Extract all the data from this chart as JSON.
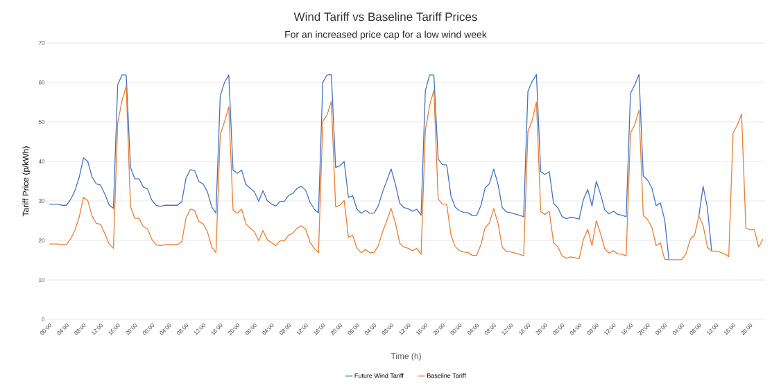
{
  "chart_data": {
    "type": "line",
    "title": "Wind Tariff vs Baseline Tariff Prices",
    "subtitle": "For an increased price cap for a low wind week",
    "xlabel": "Time (h)",
    "ylabel": "Tariff Price (p/kWh)",
    "categories": [
      "00:00",
      null,
      null,
      null,
      "04:00",
      null,
      null,
      null,
      "08:00",
      null,
      null,
      null,
      "12:00",
      null,
      null,
      null,
      "16:00",
      null,
      null,
      null,
      "20:00",
      null,
      null,
      null,
      "00:00",
      null,
      null,
      null,
      "04:00",
      null,
      null,
      null,
      "08:00",
      null,
      null,
      null,
      "12:00",
      null,
      null,
      null,
      "16:00",
      null,
      null,
      null,
      "20:00",
      null,
      null,
      null,
      "00:00",
      null,
      null,
      null,
      "04:00",
      null,
      null,
      null,
      "08:00",
      null,
      null,
      null,
      "12:00",
      null,
      null,
      null,
      "16:00",
      null,
      null,
      null,
      "20:00",
      null,
      null,
      null,
      "00:00",
      null,
      null,
      null,
      "04:00",
      null,
      null,
      null,
      "08:00",
      null,
      null,
      null,
      "12:00",
      null,
      null,
      null,
      "16:00",
      null,
      null,
      null,
      "20:00",
      null,
      null,
      null,
      "00:00",
      null,
      null,
      null,
      "04:00",
      null,
      null,
      null,
      "08:00",
      null,
      null,
      null,
      "12:00",
      null,
      null,
      null,
      "16:00",
      null,
      null,
      null,
      "20:00",
      null,
      null,
      null,
      "00:00",
      null,
      null,
      null,
      "04:00",
      null,
      null,
      null,
      "08:00",
      null,
      null,
      null,
      "12:00",
      null,
      null,
      null,
      "16:00",
      null,
      null,
      null,
      "20:00",
      null,
      null,
      null,
      "00:00",
      null,
      null,
      null,
      "04:00",
      null,
      null,
      null,
      "08:00",
      null,
      null,
      null,
      "12:00",
      null,
      null,
      null,
      "16:00",
      null,
      null,
      null,
      "20:00",
      null,
      null,
      null
    ],
    "series": [
      {
        "name": "Future Wind Tariff",
        "color": "#4472c4",
        "values": [
          29.2,
          29.2,
          29.2,
          28.9,
          28.9,
          30.4,
          32.6,
          36.0,
          40.9,
          40.0,
          36.1,
          34.3,
          34.0,
          31.7,
          29.0,
          28.1,
          59.4,
          61.9,
          61.9,
          38.5,
          35.6,
          35.6,
          33.5,
          33.0,
          30.2,
          28.9,
          28.6,
          28.9,
          28.9,
          28.9,
          28.9,
          29.8,
          35.8,
          37.9,
          37.7,
          34.9,
          34.3,
          32.3,
          28.5,
          26.9,
          56.6,
          60.0,
          61.9,
          37.8,
          37.0,
          37.8,
          34.2,
          33.2,
          32.3,
          29.9,
          32.6,
          30.1,
          29.2,
          28.7,
          29.9,
          29.9,
          31.4,
          31.9,
          33.2,
          33.7,
          32.7,
          29.7,
          27.9,
          27.0,
          60.0,
          61.9,
          62.0,
          38.5,
          38.9,
          40.0,
          30.9,
          31.3,
          27.9,
          26.9,
          27.6,
          26.9,
          26.9,
          28.8,
          32.3,
          35.2,
          38.1,
          34.2,
          29.4,
          28.3,
          28.0,
          27.4,
          27.9,
          26.4,
          57.9,
          61.9,
          61.9,
          40.6,
          39.2,
          39.1,
          31.2,
          28.4,
          27.5,
          27.1,
          27.0,
          26.3,
          26.3,
          28.8,
          33.3,
          34.4,
          38.1,
          34.2,
          28.3,
          27.2,
          27.0,
          26.7,
          26.4,
          26.0,
          57.7,
          60.3,
          62.0,
          37.4,
          36.7,
          37.4,
          29.4,
          28.3,
          26.0,
          25.5,
          25.9,
          25.7,
          25.4,
          30.4,
          32.9,
          28.7,
          35.0,
          31.7,
          27.7,
          26.7,
          27.4,
          26.6,
          26.4,
          26.0,
          57.2,
          59.4,
          62.0,
          36.3,
          35.3,
          33.3,
          28.8,
          29.5,
          25.3,
          15.1,
          null,
          null,
          null,
          null,
          null,
          null,
          26.2,
          33.7,
          28.3,
          17.3,
          null,
          null,
          null,
          null,
          null,
          null,
          null,
          null,
          null,
          null,
          null,
          null
        ]
      },
      {
        "name": "Baseline Tariff",
        "color": "#ed7d31",
        "values": [
          19.1,
          19.1,
          19.1,
          18.9,
          18.9,
          20.4,
          22.6,
          25.9,
          30.9,
          30.1,
          26.2,
          24.3,
          24.1,
          21.7,
          19.1,
          18.0,
          49.7,
          55.3,
          59.0,
          28.6,
          25.6,
          25.6,
          23.5,
          22.9,
          20.3,
          18.9,
          18.7,
          18.9,
          18.9,
          18.9,
          18.9,
          19.7,
          25.7,
          27.9,
          27.6,
          24.8,
          24.2,
          22.2,
          18.4,
          16.9,
          46.7,
          50.1,
          53.8,
          27.7,
          26.9,
          27.9,
          24.2,
          23.1,
          22.2,
          19.9,
          22.5,
          20.2,
          19.4,
          18.7,
          19.9,
          19.9,
          21.3,
          21.9,
          23.1,
          23.7,
          22.8,
          19.6,
          18.0,
          16.9,
          50.1,
          51.8,
          55.2,
          28.5,
          28.9,
          30.1,
          20.8,
          21.3,
          18.0,
          16.9,
          17.7,
          16.9,
          16.9,
          18.7,
          22.2,
          25.1,
          28.1,
          24.4,
          19.3,
          18.3,
          18.0,
          17.4,
          18.0,
          16.5,
          47.8,
          54.2,
          58.0,
          30.5,
          29.2,
          29.1,
          21.3,
          18.4,
          17.4,
          17.1,
          16.9,
          16.2,
          16.2,
          18.9,
          23.3,
          24.4,
          28.1,
          24.3,
          18.3,
          17.2,
          17.1,
          16.8,
          16.5,
          16.1,
          47.6,
          50.4,
          55.0,
          27.3,
          26.6,
          27.4,
          19.4,
          18.4,
          16.1,
          15.5,
          15.8,
          15.6,
          15.4,
          20.3,
          22.8,
          18.7,
          25.0,
          21.7,
          17.8,
          16.8,
          17.4,
          16.6,
          16.5,
          16.1,
          47.1,
          49.3,
          53.0,
          26.3,
          25.3,
          23.4,
          18.7,
          19.4,
          15.2,
          15.1,
          15.1,
          15.1,
          15.1,
          16.6,
          20.3,
          21.3,
          26.2,
          23.8,
          18.3,
          17.3,
          17.3,
          17.0,
          16.6,
          15.9,
          47.2,
          49.2,
          52.0,
          23.2,
          22.7,
          22.7,
          18.3,
          20.3
        ]
      }
    ],
    "ylim": [
      0,
      70
    ],
    "yticks": [
      0,
      10,
      20,
      30,
      40,
      50,
      60,
      70
    ],
    "grid": "y",
    "legend": "bottom"
  }
}
